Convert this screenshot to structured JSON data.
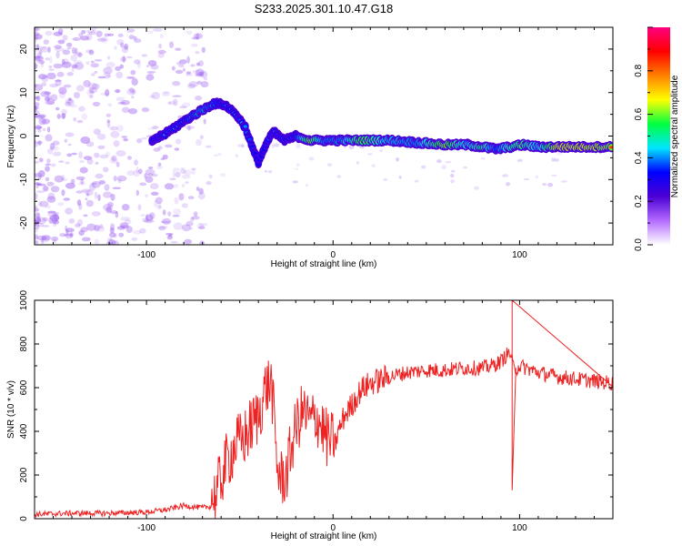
{
  "title": "S233.2025.301.10.47.G18",
  "colors": {
    "signal_line": "#ee2222",
    "speckle": "#9a5cf0",
    "axis": "#000000"
  },
  "chart_data": [
    {
      "type": "heatmap",
      "xlabel": "Height of straight line (km)",
      "ylabel": "Frequency (Hz)",
      "xlim": [
        -160,
        150
      ],
      "ylim": [
        -25,
        25
      ],
      "x_ticks": [
        -100,
        0,
        100
      ],
      "y_ticks": [
        -20,
        -10,
        0,
        10,
        20
      ],
      "colorbar": {
        "label": "Normalized spectral amplitude",
        "range": [
          0,
          1
        ],
        "ticks": [
          "0.0",
          "0.2",
          "0.4",
          "0.6",
          "0.8"
        ],
        "stops": [
          "#ffffff",
          "#b36bff",
          "#4b00d4",
          "#0000ff",
          "#00e5ff",
          "#00ff40",
          "#ffff00",
          "#ff8000",
          "#ff0000",
          "#ff0080"
        ]
      },
      "ridge": [
        {
          "x": -97,
          "f": -1,
          "amp": 0.3
        },
        {
          "x": -90,
          "f": 0.5,
          "amp": 0.45
        },
        {
          "x": -83,
          "f": 2.5,
          "amp": 0.45
        },
        {
          "x": -76,
          "f": 4.5,
          "amp": 0.5
        },
        {
          "x": -70,
          "f": 6,
          "amp": 0.55
        },
        {
          "x": -64,
          "f": 7.5,
          "amp": 0.5
        },
        {
          "x": -58,
          "f": 7.2,
          "amp": 0.45
        },
        {
          "x": -52,
          "f": 5,
          "amp": 0.45
        },
        {
          "x": -47,
          "f": 2,
          "amp": 0.4
        },
        {
          "x": -43,
          "f": -3,
          "amp": 0.35
        },
        {
          "x": -40,
          "f": -6,
          "amp": 0.3
        },
        {
          "x": -36,
          "f": -2,
          "amp": 0.35
        },
        {
          "x": -32,
          "f": 1,
          "amp": 0.4
        },
        {
          "x": -26,
          "f": -1,
          "amp": 0.4
        },
        {
          "x": -20,
          "f": 0,
          "amp": 0.45
        },
        {
          "x": -12,
          "f": -1,
          "amp": 0.85
        },
        {
          "x": -5,
          "f": -1,
          "amp": 0.55
        },
        {
          "x": 5,
          "f": -1,
          "amp": 0.55
        },
        {
          "x": 15,
          "f": -1,
          "amp": 0.8
        },
        {
          "x": 30,
          "f": -1,
          "amp": 0.6
        },
        {
          "x": 45,
          "f": -1.5,
          "amp": 0.55
        },
        {
          "x": 60,
          "f": -2,
          "amp": 0.85
        },
        {
          "x": 72,
          "f": -2,
          "amp": 0.6
        },
        {
          "x": 80,
          "f": -2.5,
          "amp": 0.75
        },
        {
          "x": 88,
          "f": -3,
          "amp": 0.5
        },
        {
          "x": 95,
          "f": -2.5,
          "amp": 0.7
        },
        {
          "x": 102,
          "f": -2,
          "amp": 0.75
        },
        {
          "x": 110,
          "f": -2.5,
          "amp": 0.6
        },
        {
          "x": 120,
          "f": -2.5,
          "amp": 0.9
        },
        {
          "x": 135,
          "f": -2.5,
          "amp": 0.9
        },
        {
          "x": 150,
          "f": -2.5,
          "amp": 0.85
        }
      ]
    },
    {
      "type": "line",
      "xlabel": "Height of straight line (km)",
      "ylabel": "SNR (10 * v/v)",
      "xlim": [
        -160,
        150
      ],
      "ylim": [
        0,
        1000
      ],
      "x_ticks": [
        -100,
        0,
        100
      ],
      "y_ticks": [
        0,
        200,
        400,
        600,
        800,
        1000
      ],
      "series": [
        {
          "name": "SNR",
          "x": [
            -160,
            -140,
            -120,
            -100,
            -90,
            -80,
            -70,
            -63,
            -58,
            -52,
            -48,
            -44,
            -40,
            -36,
            -33,
            -30,
            -28,
            -25,
            -22,
            -19,
            -16,
            -14,
            -12,
            -9,
            -6,
            -3,
            0,
            3,
            6,
            10,
            15,
            20,
            30,
            40,
            50,
            60,
            70,
            80,
            85,
            90,
            93,
            95,
            97,
            100,
            110,
            120,
            130,
            140,
            150
          ],
          "y": [
            20,
            25,
            25,
            30,
            40,
            60,
            50,
            60,
            200,
            300,
            320,
            380,
            430,
            560,
            580,
            200,
            140,
            160,
            300,
            400,
            450,
            420,
            400,
            430,
            380,
            320,
            310,
            400,
            470,
            520,
            590,
            620,
            650,
            670,
            680,
            680,
            690,
            690,
            700,
            720,
            750,
            760,
            680,
            700,
            670,
            650,
            640,
            630,
            620
          ]
        }
      ],
      "annotations": [
        {
          "x": 96,
          "y": 1000,
          "note": "spike"
        },
        {
          "x": 96,
          "y": 130,
          "note": "dip"
        }
      ]
    }
  ]
}
